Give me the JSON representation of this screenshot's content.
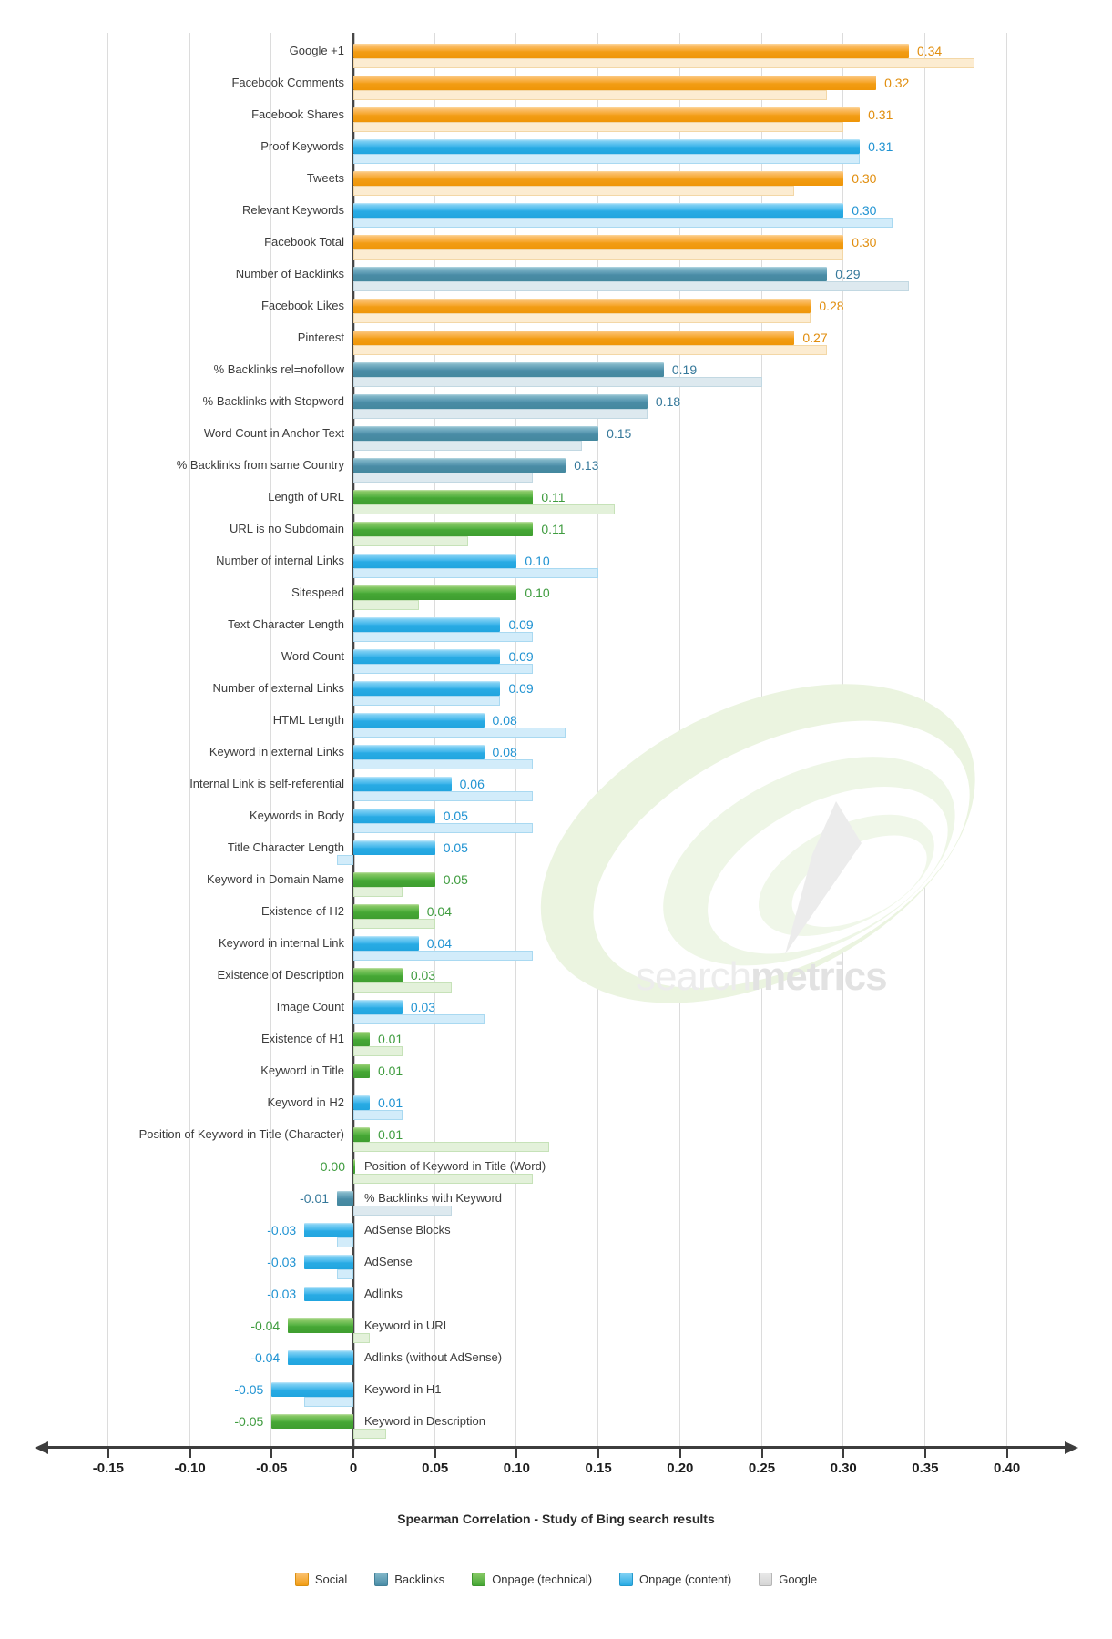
{
  "watermark": {
    "brand_light": "search",
    "brand_bold": "metrics",
    "swoosh_color": "#ebf4e0",
    "leaf_color": "#ececec"
  },
  "axis": {
    "title": "Spearman Correlation - Study of Bing search results",
    "tick_labels": [
      "-0.15",
      "-0.10",
      "-0.05",
      "0",
      "0.05",
      "0.10",
      "0.15",
      "0.20",
      "0.25",
      "0.30",
      "0.35",
      "0.40"
    ],
    "tick_values": [
      -0.15,
      -0.1,
      -0.05,
      0,
      0.05,
      0.1,
      0.15,
      0.2,
      0.25,
      0.3,
      0.35,
      0.4
    ]
  },
  "legend": [
    {
      "label": "Social",
      "key": "social",
      "color": "#f6a426"
    },
    {
      "label": "Backlinks",
      "key": "backlinks",
      "color": "#4e8ea8"
    },
    {
      "label": "Onpage (technical)",
      "key": "onpage_technical",
      "color": "#46a735"
    },
    {
      "label": "Onpage (content)",
      "key": "onpage_content",
      "color": "#29abe4"
    },
    {
      "label": "Google",
      "key": "google",
      "color": "#d9d9d9"
    }
  ],
  "chart_data": {
    "type": "bar",
    "orientation": "horizontal",
    "title": "",
    "xlabel": "Spearman Correlation - Study of Bing search results",
    "xlim": [
      -0.175,
      0.435
    ],
    "grid": true,
    "legend_position": "bottom",
    "note": "Main colored bars = Bing study values (labeled). Pale offset bars = Google comparison values (unlabeled, estimated from bar lengths).",
    "items": [
      {
        "label": "Google +1",
        "value": 0.34,
        "value_label": "0.34",
        "category": "social",
        "google": 0.38
      },
      {
        "label": "Facebook Comments",
        "value": 0.32,
        "value_label": "0.32",
        "category": "social",
        "google": 0.29
      },
      {
        "label": "Facebook Shares",
        "value": 0.31,
        "value_label": "0.31",
        "category": "social",
        "google": 0.3
      },
      {
        "label": "Proof Keywords",
        "value": 0.31,
        "value_label": "0.31",
        "category": "onpage_content",
        "google": 0.31
      },
      {
        "label": "Tweets",
        "value": 0.3,
        "value_label": "0.30",
        "category": "social",
        "google": 0.27
      },
      {
        "label": "Relevant Keywords",
        "value": 0.3,
        "value_label": "0.30",
        "category": "onpage_content",
        "google": 0.33
      },
      {
        "label": "Facebook Total",
        "value": 0.3,
        "value_label": "0.30",
        "category": "social",
        "google": 0.3
      },
      {
        "label": "Number of Backlinks",
        "value": 0.29,
        "value_label": "0.29",
        "category": "backlinks",
        "google": 0.34
      },
      {
        "label": "Facebook Likes",
        "value": 0.28,
        "value_label": "0.28",
        "category": "social",
        "google": 0.28
      },
      {
        "label": "Pinterest",
        "value": 0.27,
        "value_label": "0.27",
        "category": "social",
        "google": 0.29
      },
      {
        "label": "% Backlinks rel=nofollow",
        "value": 0.19,
        "value_label": "0.19",
        "category": "backlinks",
        "google": 0.25
      },
      {
        "label": "% Backlinks with Stopword",
        "value": 0.18,
        "value_label": "0.18",
        "category": "backlinks",
        "google": 0.18
      },
      {
        "label": "Word Count in Anchor Text",
        "value": 0.15,
        "value_label": "0.15",
        "category": "backlinks",
        "google": 0.14
      },
      {
        "label": "% Backlinks from same Country",
        "value": 0.13,
        "value_label": "0.13",
        "category": "backlinks",
        "google": 0.11
      },
      {
        "label": "Length of URL",
        "value": 0.11,
        "value_label": "0.11",
        "category": "onpage_technical",
        "google": 0.16
      },
      {
        "label": "URL is no Subdomain",
        "value": 0.11,
        "value_label": "0.11",
        "category": "onpage_technical",
        "google": 0.07
      },
      {
        "label": "Number of internal Links",
        "value": 0.1,
        "value_label": "0.10",
        "category": "onpage_content",
        "google": 0.15
      },
      {
        "label": "Sitespeed",
        "value": 0.1,
        "value_label": "0.10",
        "category": "onpage_technical",
        "google": 0.04
      },
      {
        "label": "Text Character Length",
        "value": 0.09,
        "value_label": "0.09",
        "category": "onpage_content",
        "google": 0.11
      },
      {
        "label": "Word Count",
        "value": 0.09,
        "value_label": "0.09",
        "category": "onpage_content",
        "google": 0.11
      },
      {
        "label": "Number of external Links",
        "value": 0.09,
        "value_label": "0.09",
        "category": "onpage_content",
        "google": 0.09
      },
      {
        "label": "HTML Length",
        "value": 0.08,
        "value_label": "0.08",
        "category": "onpage_content",
        "google": 0.13
      },
      {
        "label": "Keyword in external Links",
        "value": 0.08,
        "value_label": "0.08",
        "category": "onpage_content",
        "google": 0.11
      },
      {
        "label": "Internal Link is self-referential",
        "value": 0.06,
        "value_label": "0.06",
        "category": "onpage_content",
        "google": 0.11
      },
      {
        "label": "Keywords in Body",
        "value": 0.05,
        "value_label": "0.05",
        "category": "onpage_content",
        "google": 0.11
      },
      {
        "label": "Title Character Length",
        "value": 0.05,
        "value_label": "0.05",
        "category": "onpage_content",
        "google": -0.01
      },
      {
        "label": "Keyword in Domain Name",
        "value": 0.05,
        "value_label": "0.05",
        "category": "onpage_technical",
        "google": 0.03
      },
      {
        "label": "Existence of H2",
        "value": 0.04,
        "value_label": "0.04",
        "category": "onpage_technical",
        "google": 0.05
      },
      {
        "label": "Keyword in internal Link",
        "value": 0.04,
        "value_label": "0.04",
        "category": "onpage_content",
        "google": 0.11
      },
      {
        "label": "Existence of Description",
        "value": 0.03,
        "value_label": "0.03",
        "category": "onpage_technical",
        "google": 0.06
      },
      {
        "label": "Image Count",
        "value": 0.03,
        "value_label": "0.03",
        "category": "onpage_content",
        "google": 0.08
      },
      {
        "label": "Existence of H1",
        "value": 0.01,
        "value_label": "0.01",
        "category": "onpage_technical",
        "google": 0.03
      },
      {
        "label": "Keyword in Title",
        "value": 0.01,
        "value_label": "0.01",
        "category": "onpage_technical",
        "google": null
      },
      {
        "label": "Keyword in H2",
        "value": 0.01,
        "value_label": "0.01",
        "category": "onpage_content",
        "google": 0.03
      },
      {
        "label": "Position of Keyword in Title (Character)",
        "value": 0.01,
        "value_label": "0.01",
        "category": "onpage_technical",
        "google": 0.12
      },
      {
        "label": "Position of Keyword in Title (Word)",
        "value": 0.0,
        "value_label": "0.00",
        "category": "onpage_technical",
        "google": 0.11
      },
      {
        "label": "% Backlinks with Keyword",
        "value": -0.01,
        "value_label": "-0.01",
        "category": "backlinks",
        "google": 0.06
      },
      {
        "label": "AdSense Blocks",
        "value": -0.03,
        "value_label": "-0.03",
        "category": "onpage_content",
        "google": -0.01
      },
      {
        "label": "AdSense",
        "value": -0.03,
        "value_label": "-0.03",
        "category": "onpage_content",
        "google": -0.01
      },
      {
        "label": "Adlinks",
        "value": -0.03,
        "value_label": "-0.03",
        "category": "onpage_content",
        "google": null
      },
      {
        "label": "Keyword in URL",
        "value": -0.04,
        "value_label": "-0.04",
        "category": "onpage_technical",
        "google": 0.01
      },
      {
        "label": "Adlinks (without AdSense)",
        "value": -0.04,
        "value_label": "-0.04",
        "category": "onpage_content",
        "google": null
      },
      {
        "label": "Keyword in H1",
        "value": -0.05,
        "value_label": "-0.05",
        "category": "onpage_content",
        "google": -0.03
      },
      {
        "label": "Keyword in Description",
        "value": -0.05,
        "value_label": "-0.05",
        "category": "onpage_technical",
        "google": 0.02
      }
    ]
  }
}
